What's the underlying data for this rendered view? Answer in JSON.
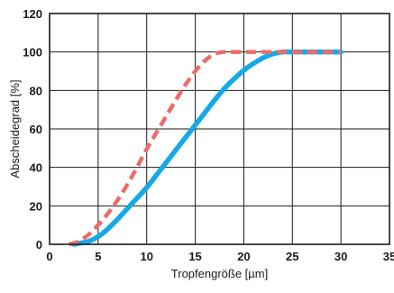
{
  "chart_data": {
    "type": "line",
    "title": "",
    "xlabel": "Tropfengröße [µm]",
    "ylabel": "Abscheidegrad [%]",
    "xlim": [
      0,
      35
    ],
    "ylim": [
      0,
      120
    ],
    "x_ticks": [
      "0",
      "5",
      "10",
      "15",
      "20",
      "25",
      "30",
      "35"
    ],
    "y_ticks": [
      "0",
      "20",
      "40",
      "60",
      "80",
      "100",
      "120"
    ],
    "grid": true,
    "legend": "none",
    "series": [
      {
        "color": "#15a9e5",
        "style": "solid",
        "x": [
          2.5,
          3,
          4,
          5,
          6,
          7,
          8,
          9,
          10,
          11,
          12,
          13,
          14,
          15,
          16,
          17,
          18,
          19,
          20,
          21,
          22,
          23,
          24,
          25,
          26,
          27,
          28,
          29,
          30
        ],
        "y": [
          0,
          0.5,
          1.5,
          4,
          8,
          13,
          18.5,
          24,
          29.5,
          36,
          42.5,
          49,
          55.5,
          62,
          68.5,
          75,
          81,
          86,
          90.5,
          94,
          97,
          99,
          100,
          100,
          100,
          100,
          100,
          100,
          100
        ]
      },
      {
        "color": "#ea6d69",
        "style": "dashed",
        "x": [
          2,
          3,
          4,
          5,
          6,
          7,
          8,
          9,
          10,
          11,
          12,
          13,
          14,
          15,
          16,
          17,
          18,
          19,
          20,
          21,
          22,
          23,
          24,
          25,
          26,
          27,
          28,
          29,
          30
        ],
        "y": [
          0,
          1.5,
          5,
          10,
          16,
          23,
          31,
          40,
          49.5,
          58,
          66.5,
          75,
          83,
          90,
          95.5,
          99,
          100,
          100,
          100,
          100,
          100,
          100,
          100,
          100,
          100,
          100,
          100,
          100,
          100
        ]
      }
    ]
  }
}
